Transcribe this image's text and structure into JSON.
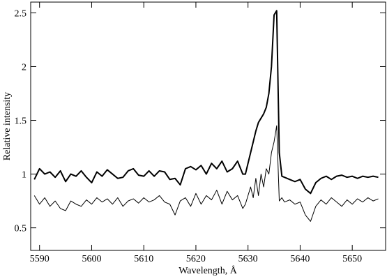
{
  "chart_data": {
    "type": "line",
    "x_label": "Wavelength, Å",
    "y_label": "Relative intensity",
    "x": [
      5589,
      5590,
      5591,
      5592,
      5593,
      5594,
      5595,
      5596,
      5597,
      5598,
      5599,
      5600,
      5601,
      5602,
      5603,
      5604,
      5605,
      5606,
      5607,
      5608,
      5609,
      5610,
      5611,
      5612,
      5613,
      5614,
      5615,
      5616,
      5617,
      5618,
      5619,
      5620,
      5621,
      5622,
      5623,
      5624,
      5625,
      5626,
      5627,
      5628,
      5629,
      5629.5,
      5630,
      5630.5,
      5631,
      5631.5,
      5632,
      5632.5,
      5633,
      5633.5,
      5634,
      5634.5,
      5635,
      5635.5,
      5636,
      5636.5,
      5637,
      5638,
      5639,
      5640,
      5641,
      5642,
      5643,
      5644,
      5645,
      5646,
      5647,
      5648,
      5649,
      5650,
      5651,
      5652,
      5653,
      5654,
      5655
    ],
    "series": [
      {
        "color": "#000000",
        "line_width": 2,
        "values": [
          0.95,
          1.05,
          1.0,
          1.02,
          0.97,
          1.03,
          0.93,
          1.0,
          0.98,
          1.03,
          0.97,
          0.92,
          1.02,
          0.98,
          1.04,
          1.0,
          0.96,
          0.97,
          1.03,
          1.05,
          0.99,
          0.98,
          1.03,
          0.98,
          1.03,
          1.02,
          0.95,
          0.96,
          0.9,
          1.05,
          1.07,
          1.04,
          1.08,
          1.0,
          1.1,
          1.05,
          1.12,
          1.02,
          1.05,
          1.12,
          1.0,
          1.0,
          1.1,
          1.2,
          1.3,
          1.4,
          1.48,
          1.52,
          1.56,
          1.62,
          1.75,
          2.0,
          2.48,
          2.52,
          1.2,
          0.98,
          0.97,
          0.95,
          0.93,
          0.95,
          0.86,
          0.82,
          0.92,
          0.96,
          0.98,
          0.95,
          0.98,
          0.99,
          0.97,
          0.98,
          0.96,
          0.98,
          0.97,
          0.98,
          0.97
        ]
      },
      {
        "color": "#000000",
        "line_width": 1,
        "values": [
          0.8,
          0.72,
          0.78,
          0.7,
          0.75,
          0.68,
          0.66,
          0.75,
          0.72,
          0.7,
          0.76,
          0.72,
          0.78,
          0.74,
          0.77,
          0.72,
          0.78,
          0.7,
          0.75,
          0.77,
          0.73,
          0.78,
          0.74,
          0.76,
          0.8,
          0.74,
          0.72,
          0.62,
          0.75,
          0.78,
          0.7,
          0.82,
          0.72,
          0.8,
          0.76,
          0.85,
          0.72,
          0.84,
          0.76,
          0.8,
          0.68,
          0.72,
          0.8,
          0.88,
          0.78,
          0.96,
          0.8,
          1.0,
          0.88,
          1.05,
          1.0,
          1.2,
          1.3,
          1.45,
          0.75,
          0.78,
          0.74,
          0.76,
          0.72,
          0.74,
          0.62,
          0.56,
          0.7,
          0.76,
          0.72,
          0.78,
          0.74,
          0.7,
          0.76,
          0.72,
          0.77,
          0.74,
          0.78,
          0.75,
          0.77
        ]
      }
    ],
    "xlim": [
      5588.3,
      5656.4
    ],
    "xticks": [
      5590,
      5600,
      5610,
      5620,
      5630,
      5640,
      5650
    ],
    "ylim": [
      0.29,
      2.6
    ],
    "yticks": [
      0.5,
      1,
      1.5,
      2,
      2.5
    ],
    "grid": false
  }
}
